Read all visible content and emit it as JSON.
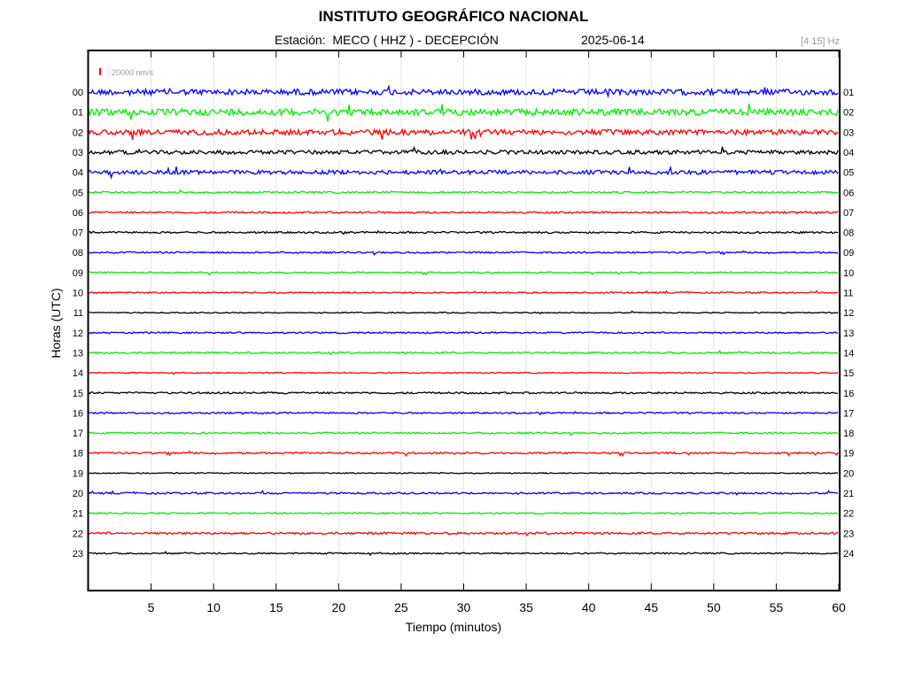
{
  "header": {
    "title": "INSTITUTO GEOGRÁFICO NACIONAL",
    "station": "Estación:  MECO ( HHZ ) - DECEPCIÓN",
    "date": "2025-06-14",
    "filter": "[4 15] Hz"
  },
  "chart_data": {
    "type": "line",
    "title": "INSTITUTO GEOGRÁFICO NACIONAL",
    "xlabel": "Tiempo (minutos)",
    "ylabel": "Horas (UTC)",
    "xlim": [
      0,
      60
    ],
    "x_ticks": [
      5,
      10,
      15,
      20,
      25,
      30,
      35,
      40,
      45,
      50,
      55,
      60
    ],
    "x_tick_labels": [
      "5",
      "10",
      "15",
      "20",
      "25",
      "30",
      "35",
      "40",
      "45",
      "50",
      "55",
      "60"
    ],
    "grid": true,
    "scale_label": "20000 nm/s",
    "scale_color": "#ff0000",
    "hours_left": [
      "00",
      "01",
      "02",
      "03",
      "04",
      "05",
      "06",
      "07",
      "08",
      "09",
      "10",
      "11",
      "12",
      "13",
      "14",
      "15",
      "16",
      "17",
      "18",
      "19",
      "20",
      "21",
      "22",
      "23"
    ],
    "hours_right": [
      "01",
      "02",
      "03",
      "04",
      "05",
      "06",
      "07",
      "08",
      "09",
      "10",
      "11",
      "12",
      "13",
      "14",
      "15",
      "16",
      "17",
      "18",
      "19",
      "20",
      "21",
      "22",
      "23",
      "24"
    ],
    "trace_colors": [
      "#0000ff",
      "#00ee00",
      "#ff0000",
      "#000000"
    ],
    "trace_noise": [
      3.2,
      3.6,
      3.0,
      2.2,
      2.2,
      1.0,
      1.0,
      1.0,
      0.9,
      0.8,
      0.8,
      0.6,
      0.9,
      1.0,
      0.6,
      1.0,
      0.9,
      0.9,
      1.0,
      0.6,
      1.0,
      0.8,
      1.2,
      0.8
    ]
  }
}
